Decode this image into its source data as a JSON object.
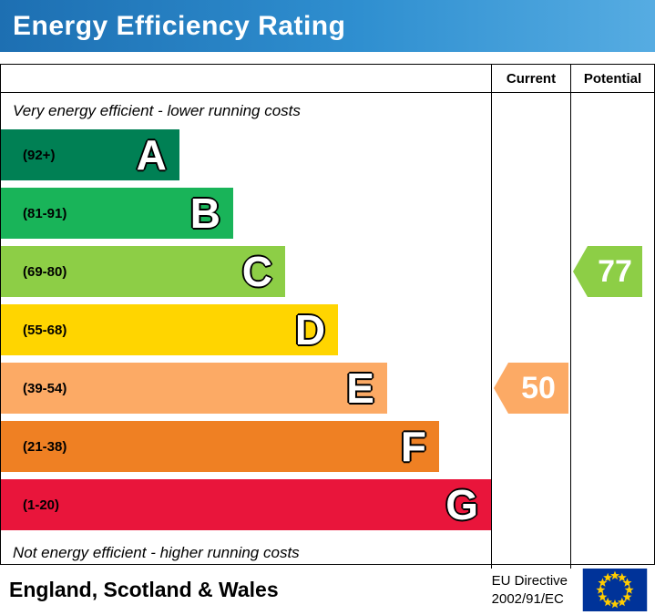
{
  "title": "Energy Efficiency Rating",
  "columns": {
    "current": "Current",
    "potential": "Potential"
  },
  "notes": {
    "top": "Very energy efficient - lower running costs",
    "bottom": "Not energy efficient - higher running costs"
  },
  "bands": [
    {
      "letter": "A",
      "range": "(92+)",
      "color": "#008054",
      "width_pct": 36.4
    },
    {
      "letter": "B",
      "range": "(81-91)",
      "color": "#19b459",
      "width_pct": 47.4
    },
    {
      "letter": "C",
      "range": "(69-80)",
      "color": "#8dce46",
      "width_pct": 58.0
    },
    {
      "letter": "D",
      "range": "(55-68)",
      "color": "#ffd500",
      "width_pct": 68.8
    },
    {
      "letter": "E",
      "range": "(39-54)",
      "color": "#fcaa65",
      "width_pct": 78.8
    },
    {
      "letter": "F",
      "range": "(21-38)",
      "color": "#ef8023",
      "width_pct": 89.4
    },
    {
      "letter": "G",
      "range": "(1-20)",
      "color": "#e9153b",
      "width_pct": 100
    }
  ],
  "ratings": {
    "current": {
      "value": "50",
      "color": "#fcaa65",
      "band_index": 4
    },
    "potential": {
      "value": "77",
      "color": "#8dce46",
      "band_index": 2
    }
  },
  "footer": {
    "region": "England, Scotland & Wales",
    "directive": [
      "EU Directive",
      "2002/91/EC"
    ]
  },
  "chart_data": {
    "type": "bar",
    "title": "Energy Efficiency Rating",
    "categories": [
      "A (92+)",
      "B (81-91)",
      "C (69-80)",
      "D (55-68)",
      "E (39-54)",
      "F (21-38)",
      "G (1-20)"
    ],
    "band_ranges": [
      [
        92,
        100
      ],
      [
        81,
        91
      ],
      [
        69,
        80
      ],
      [
        55,
        68
      ],
      [
        39,
        54
      ],
      [
        21,
        38
      ],
      [
        1,
        20
      ]
    ],
    "band_colors": [
      "#008054",
      "#19b459",
      "#8dce46",
      "#ffd500",
      "#fcaa65",
      "#ef8023",
      "#e9153b"
    ],
    "series": [
      {
        "name": "Current",
        "value": 50,
        "band": "E"
      },
      {
        "name": "Potential",
        "value": 77,
        "band": "C"
      }
    ],
    "annotations": [
      "Very energy efficient - lower running costs",
      "Not energy efficient - higher running costs"
    ],
    "region": "England, Scotland & Wales",
    "directive": "EU Directive 2002/91/EC"
  }
}
